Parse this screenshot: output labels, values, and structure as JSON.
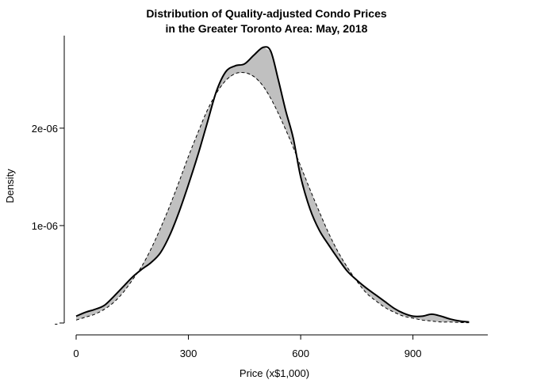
{
  "chart_data": {
    "type": "line",
    "title": "Distribution of Quality-adjusted Condo Prices",
    "subtitle": "in the Greater Toronto Area: May, 2018",
    "xlabel": "Price (x$1,000)",
    "ylabel": "Density",
    "xlim": [
      0,
      1100
    ],
    "ylim": [
      0,
      2.95e-06
    ],
    "x_ticks": [
      {
        "value": 0,
        "label": "0"
      },
      {
        "value": 300,
        "label": "300"
      },
      {
        "value": 600,
        "label": "600"
      },
      {
        "value": 900,
        "label": "900"
      }
    ],
    "y_ticks": [
      {
        "value": 0,
        "label": "-"
      },
      {
        "value": 1e-06,
        "label": "1e-06"
      },
      {
        "value": 2e-06,
        "label": "2e-06"
      }
    ],
    "grid": false,
    "shading": {
      "color": "#c0c0c0",
      "between": [
        "observed",
        "normal"
      ]
    },
    "series": [
      {
        "id": "observed",
        "style": "solid",
        "color": "#000000",
        "x": [
          0,
          25,
          50,
          75,
          100,
          125,
          150,
          175,
          200,
          225,
          250,
          275,
          300,
          325,
          350,
          375,
          400,
          425,
          450,
          475,
          500,
          520,
          540,
          560,
          580,
          600,
          625,
          650,
          675,
          700,
          725,
          750,
          775,
          800,
          825,
          850,
          875,
          900,
          925,
          950,
          975,
          1000,
          1025,
          1050
        ],
        "y": [
          7e-08,
          1.1e-07,
          1.4e-07,
          1.8e-07,
          2.7e-07,
          3.7e-07,
          4.7e-07,
          5.5e-07,
          6.2e-07,
          7.2e-07,
          9e-07,
          1.14e-06,
          1.42e-06,
          1.72e-06,
          2.05e-06,
          2.38e-06,
          2.58e-06,
          2.64e-06,
          2.66e-06,
          2.75e-06,
          2.83e-06,
          2.79e-06,
          2.5e-06,
          2.18e-06,
          1.9e-06,
          1.5e-06,
          1.17e-06,
          9.5e-07,
          8e-07,
          6.6e-07,
          5.3e-07,
          4.4e-07,
          3.6e-07,
          2.9e-07,
          2.2e-07,
          1.5e-07,
          1e-07,
          7e-08,
          7e-08,
          9e-08,
          7e-08,
          4e-08,
          2e-08,
          1e-08
        ]
      },
      {
        "id": "normal",
        "style": "dashed",
        "color": "#000000",
        "x": [
          0,
          25,
          50,
          75,
          100,
          125,
          150,
          175,
          200,
          225,
          250,
          275,
          300,
          325,
          350,
          375,
          400,
          425,
          450,
          475,
          500,
          525,
          550,
          575,
          600,
          625,
          650,
          675,
          700,
          725,
          750,
          775,
          800,
          825,
          850,
          875,
          900,
          925,
          950,
          975,
          1000,
          1025,
          1050
        ],
        "y": [
          3e-08,
          6e-08,
          9e-08,
          1.4e-07,
          2.1e-07,
          3.1e-07,
          4.4e-07,
          5.8e-07,
          7.6e-07,
          9.7e-07,
          1.2e-06,
          1.45e-06,
          1.71e-06,
          1.95e-06,
          2.18e-06,
          2.36e-06,
          2.49e-06,
          2.56e-06,
          2.57e-06,
          2.53e-06,
          2.43e-06,
          2.27e-06,
          2.07e-06,
          1.85e-06,
          1.61e-06,
          1.37e-06,
          1.14e-06,
          9.2e-07,
          7.3e-07,
          5.7e-07,
          4.3e-07,
          3.1e-07,
          2.3e-07,
          1.6e-07,
          1.1e-07,
          7e-08,
          5e-08,
          3e-08,
          2e-08,
          1e-08,
          1e-08,
          5e-09,
          3e-09
        ]
      }
    ]
  }
}
